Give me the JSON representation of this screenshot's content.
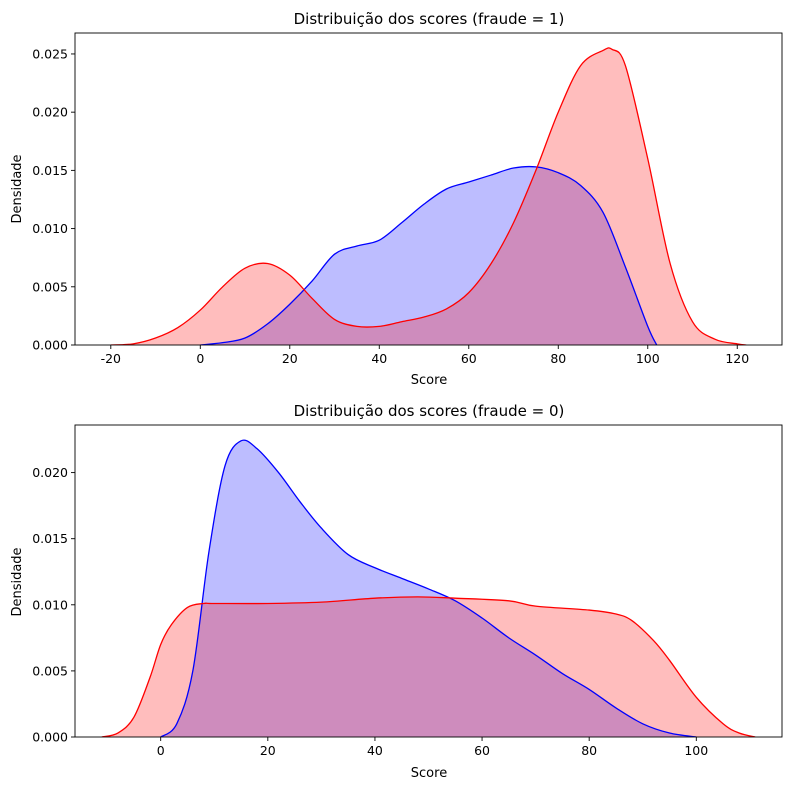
{
  "chart_data": [
    {
      "type": "area",
      "title": "Distribuição dos scores (fraude = 1)",
      "xlabel": "Score",
      "ylabel": "Densidade",
      "xlim": [
        -28,
        130
      ],
      "ylim": [
        0,
        0.0268
      ],
      "xticks": [
        "-20",
        "0",
        "20",
        "40",
        "60",
        "80",
        "100",
        "120"
      ],
      "yticks": [
        "0.000",
        "0.005",
        "0.010",
        "0.015",
        "0.020",
        "0.025"
      ],
      "grid": false,
      "series": [
        {
          "color": "#0000ff",
          "fill": "#bbbbff",
          "x": [
            0,
            5,
            10,
            15,
            20,
            25,
            30,
            35,
            40,
            45,
            50,
            55,
            60,
            65,
            70,
            75,
            80,
            85,
            90,
            95,
            100,
            102
          ],
          "y": [
            0.0,
            0.0002,
            0.0006,
            0.0018,
            0.0035,
            0.0055,
            0.0078,
            0.0085,
            0.009,
            0.0105,
            0.0121,
            0.0134,
            0.014,
            0.0146,
            0.0152,
            0.0153,
            0.0148,
            0.0137,
            0.0114,
            0.0067,
            0.0016,
            0.0
          ]
        },
        {
          "color": "#ff0000",
          "fill": "#ffbbbb",
          "x": [
            -20,
            -15,
            -10,
            -5,
            0,
            5,
            10,
            15,
            20,
            25,
            30,
            35,
            40,
            45,
            50,
            55,
            60,
            65,
            70,
            75,
            80,
            85,
            90,
            92,
            95,
            100,
            105,
            110,
            115,
            120,
            122
          ],
          "y": [
            0.0,
            0.0001,
            0.0006,
            0.0015,
            0.003,
            0.005,
            0.0066,
            0.007,
            0.006,
            0.004,
            0.0022,
            0.0016,
            0.0016,
            0.002,
            0.0024,
            0.0031,
            0.0045,
            0.007,
            0.0105,
            0.015,
            0.02,
            0.024,
            0.0253,
            0.0254,
            0.024,
            0.016,
            0.007,
            0.002,
            0.0005,
            0.0001,
            0.0
          ]
        }
      ]
    },
    {
      "type": "area",
      "title": "Distribuição dos scores (fraude = 0)",
      "xlabel": "Score",
      "ylabel": "Densidade",
      "xlim": [
        -16,
        116
      ],
      "ylim": [
        0,
        0.0236
      ],
      "xticks": [
        "0",
        "20",
        "40",
        "60",
        "80",
        "100"
      ],
      "yticks": [
        "0.000",
        "0.005",
        "0.010",
        "0.015",
        "0.020"
      ],
      "grid": false,
      "series": [
        {
          "color": "#0000ff",
          "fill": "#bbbbff",
          "x": [
            0,
            3,
            6,
            9,
            12,
            15,
            18,
            22,
            26,
            30,
            35,
            40,
            45,
            50,
            55,
            60,
            65,
            70,
            75,
            80,
            85,
            90,
            95,
            100
          ],
          "y": [
            0.0,
            0.001,
            0.005,
            0.014,
            0.0205,
            0.0224,
            0.0218,
            0.02,
            0.0178,
            0.0158,
            0.0138,
            0.0128,
            0.012,
            0.0112,
            0.0103,
            0.009,
            0.0075,
            0.0062,
            0.0048,
            0.0036,
            0.0022,
            0.001,
            0.0003,
            0.0
          ]
        },
        {
          "color": "#ff0000",
          "fill": "#ffbbbb",
          "x": [
            -11,
            -8,
            -5,
            -2,
            0,
            2,
            5,
            8,
            10,
            20,
            30,
            40,
            48,
            55,
            65,
            70,
            80,
            85,
            88,
            92,
            95,
            100,
            105,
            108,
            111
          ],
          "y": [
            0.0,
            0.0003,
            0.0015,
            0.0045,
            0.007,
            0.0085,
            0.0098,
            0.0101,
            0.0101,
            0.0101,
            0.0102,
            0.0105,
            0.0106,
            0.0105,
            0.0103,
            0.0099,
            0.0096,
            0.0093,
            0.0088,
            0.0073,
            0.0058,
            0.003,
            0.001,
            0.0003,
            0.0
          ]
        }
      ]
    }
  ]
}
